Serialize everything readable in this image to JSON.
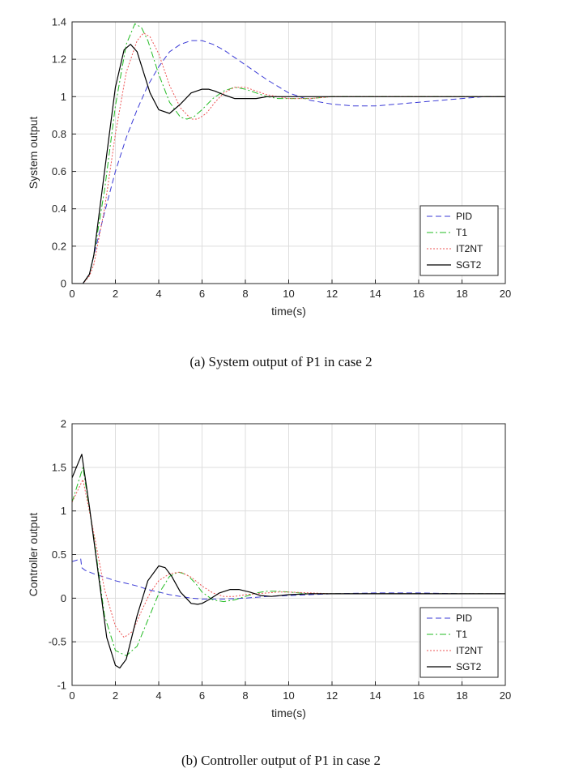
{
  "chart_data": [
    {
      "type": "line",
      "title": "",
      "caption": "(a) System output of P1 in case 2",
      "xlabel": "time(s)",
      "ylabel": "System output",
      "xlim": [
        0,
        20
      ],
      "ylim": [
        0,
        1.4
      ],
      "xticks": [
        0,
        2,
        4,
        6,
        8,
        10,
        12,
        14,
        16,
        18,
        20
      ],
      "yticks": [
        0,
        0.2,
        0.4,
        0.6,
        0.8,
        1,
        1.2,
        1.4
      ],
      "ytick_labels": [
        "0",
        "0.2",
        "0.4",
        "0.6",
        "0.8",
        "1",
        "1.2",
        "1.4"
      ],
      "grid": true,
      "legend_position": "bottom-right",
      "series": [
        {
          "name": "PID",
          "color": "#3a3ad6",
          "style": "dashed",
          "x": [
            0,
            0.5,
            0.8,
            1.0,
            1.5,
            2.0,
            2.5,
            3.0,
            3.5,
            4.0,
            4.5,
            5.0,
            5.5,
            6.0,
            6.5,
            7.0,
            8.0,
            9.0,
            10.0,
            11.0,
            12.0,
            13.0,
            14.0,
            15.0,
            16.0,
            17.0,
            18.0,
            19.0,
            20.0
          ],
          "y": [
            0,
            0,
            0.05,
            0.15,
            0.38,
            0.6,
            0.78,
            0.93,
            1.06,
            1.16,
            1.24,
            1.28,
            1.3,
            1.3,
            1.28,
            1.25,
            1.17,
            1.09,
            1.02,
            0.98,
            0.96,
            0.95,
            0.95,
            0.96,
            0.97,
            0.98,
            0.99,
            1.0,
            1.0
          ]
        },
        {
          "name": "T1",
          "color": "#22bb22",
          "style": "dashdot",
          "x": [
            0,
            0.5,
            0.8,
            1.0,
            1.5,
            2.0,
            2.5,
            2.9,
            3.2,
            3.5,
            4.0,
            4.5,
            5.0,
            5.3,
            5.6,
            6.0,
            6.5,
            7.0,
            7.5,
            8.0,
            8.5,
            9.0,
            9.5,
            10.0,
            11.0,
            12.0,
            14.0,
            16.0,
            18.0,
            20.0
          ],
          "y": [
            0,
            0,
            0.05,
            0.15,
            0.5,
            0.95,
            1.28,
            1.39,
            1.37,
            1.3,
            1.12,
            0.97,
            0.89,
            0.88,
            0.89,
            0.93,
            0.99,
            1.03,
            1.05,
            1.04,
            1.02,
            1.0,
            0.99,
            0.99,
            0.99,
            1.0,
            1.0,
            1.0,
            1.0,
            1.0
          ]
        },
        {
          "name": "IT2NT",
          "color": "#ee5555",
          "style": "dotted",
          "x": [
            0,
            0.5,
            0.8,
            1.0,
            1.5,
            2.0,
            2.5,
            3.0,
            3.3,
            3.6,
            4.0,
            4.5,
            5.0,
            5.5,
            5.8,
            6.2,
            6.6,
            7.0,
            7.5,
            8.0,
            8.5,
            9.0,
            9.5,
            10.0,
            11.0,
            12.0,
            14.0,
            16.0,
            18.0,
            20.0
          ],
          "y": [
            0,
            0,
            0.04,
            0.1,
            0.4,
            0.8,
            1.13,
            1.3,
            1.34,
            1.32,
            1.23,
            1.06,
            0.94,
            0.88,
            0.88,
            0.91,
            0.97,
            1.02,
            1.05,
            1.05,
            1.03,
            1.01,
            1.0,
            0.99,
            0.99,
            1.0,
            1.0,
            1.0,
            1.0,
            1.0
          ]
        },
        {
          "name": "SGT2",
          "color": "#000000",
          "style": "solid",
          "x": [
            0,
            0.5,
            0.8,
            1.0,
            1.5,
            2.0,
            2.4,
            2.7,
            3.0,
            3.3,
            3.6,
            4.0,
            4.5,
            5.0,
            5.5,
            6.0,
            6.3,
            6.6,
            7.0,
            7.5,
            8.0,
            8.5,
            9.0,
            9.5,
            10.0,
            11.0,
            12.0,
            14.0,
            16.0,
            18.0,
            20.0
          ],
          "y": [
            0,
            0,
            0.05,
            0.15,
            0.6,
            1.05,
            1.25,
            1.28,
            1.24,
            1.13,
            1.02,
            0.93,
            0.91,
            0.96,
            1.02,
            1.04,
            1.04,
            1.03,
            1.01,
            0.99,
            0.99,
            0.99,
            1.0,
            1.0,
            1.0,
            1.0,
            1.0,
            1.0,
            1.0,
            1.0,
            1.0
          ]
        }
      ]
    },
    {
      "type": "line",
      "title": "",
      "caption": "(b) Controller output of P1 in case 2",
      "xlabel": "time(s)",
      "ylabel": "Controller output",
      "xlim": [
        0,
        20
      ],
      "ylim": [
        -1,
        2
      ],
      "xticks": [
        0,
        2,
        4,
        6,
        8,
        10,
        12,
        14,
        16,
        18,
        20
      ],
      "yticks": [
        -1,
        -0.5,
        0,
        0.5,
        1,
        1.5,
        2
      ],
      "ytick_labels": [
        "-1",
        "-0.5",
        "0",
        "0.5",
        "1",
        "1.5",
        "2"
      ],
      "grid": true,
      "legend_position": "bottom-right",
      "series": [
        {
          "name": "PID",
          "color": "#3a3ad6",
          "style": "dashed",
          "x": [
            0,
            0.4,
            0.45,
            0.6,
            1.0,
            1.5,
            2.0,
            2.5,
            3.0,
            3.5,
            4.0,
            4.5,
            5.0,
            5.5,
            6.0,
            7.0,
            8.0,
            9.0,
            10.0,
            12.0,
            14.0,
            16.0,
            18.0,
            20.0
          ],
          "y": [
            0.42,
            0.45,
            0.35,
            0.32,
            0.28,
            0.24,
            0.2,
            0.17,
            0.14,
            0.1,
            0.07,
            0.04,
            0.02,
            0.0,
            -0.01,
            -0.01,
            0.0,
            0.02,
            0.03,
            0.05,
            0.06,
            0.06,
            0.05,
            0.05
          ]
        },
        {
          "name": "T1",
          "color": "#22bb22",
          "style": "dashdot",
          "x": [
            0,
            0.5,
            1.0,
            1.5,
            2.0,
            2.5,
            3.0,
            3.5,
            4.0,
            4.5,
            4.9,
            5.3,
            5.7,
            6.0,
            6.5,
            7.0,
            7.5,
            8.0,
            8.5,
            9.0,
            9.5,
            10.0,
            11.0,
            12.0,
            14.0,
            16.0,
            18.0,
            20.0
          ],
          "y": [
            1.1,
            1.5,
            0.7,
            -0.2,
            -0.6,
            -0.66,
            -0.55,
            -0.25,
            0.05,
            0.25,
            0.3,
            0.27,
            0.17,
            0.07,
            -0.02,
            -0.04,
            -0.02,
            0.02,
            0.06,
            0.08,
            0.08,
            0.07,
            0.05,
            0.05,
            0.05,
            0.05,
            0.05,
            0.05
          ]
        },
        {
          "name": "IT2NT",
          "color": "#ee5555",
          "style": "dotted",
          "x": [
            0,
            0.5,
            1.0,
            1.5,
            2.0,
            2.4,
            2.8,
            3.2,
            3.6,
            4.0,
            4.5,
            5.0,
            5.5,
            6.0,
            6.5,
            7.0,
            7.5,
            8.0,
            8.5,
            9.0,
            9.5,
            10.0,
            11.0,
            12.0,
            14.0,
            16.0,
            18.0,
            20.0
          ],
          "y": [
            1.1,
            1.36,
            0.75,
            0.1,
            -0.32,
            -0.45,
            -0.38,
            -0.15,
            0.06,
            0.2,
            0.28,
            0.3,
            0.24,
            0.14,
            0.06,
            0.02,
            0.02,
            0.04,
            0.05,
            0.06,
            0.07,
            0.07,
            0.06,
            0.05,
            0.05,
            0.05,
            0.05,
            0.05
          ]
        },
        {
          "name": "SGT2",
          "color": "#000000",
          "style": "solid",
          "x": [
            0,
            0.45,
            0.8,
            1.2,
            1.6,
            2.0,
            2.2,
            2.5,
            3.0,
            3.5,
            4.0,
            4.3,
            4.6,
            5.0,
            5.5,
            5.8,
            6.0,
            6.3,
            6.8,
            7.3,
            7.7,
            8.2,
            8.7,
            9.2,
            10.0,
            11.0,
            12.0,
            14.0,
            16.0,
            18.0,
            20.0
          ],
          "y": [
            1.38,
            1.65,
            1.05,
            0.3,
            -0.45,
            -0.77,
            -0.8,
            -0.7,
            -0.2,
            0.2,
            0.37,
            0.35,
            0.25,
            0.07,
            -0.06,
            -0.07,
            -0.06,
            -0.02,
            0.06,
            0.1,
            0.1,
            0.07,
            0.03,
            0.02,
            0.04,
            0.05,
            0.05,
            0.05,
            0.05,
            0.05,
            0.05
          ]
        }
      ]
    }
  ]
}
